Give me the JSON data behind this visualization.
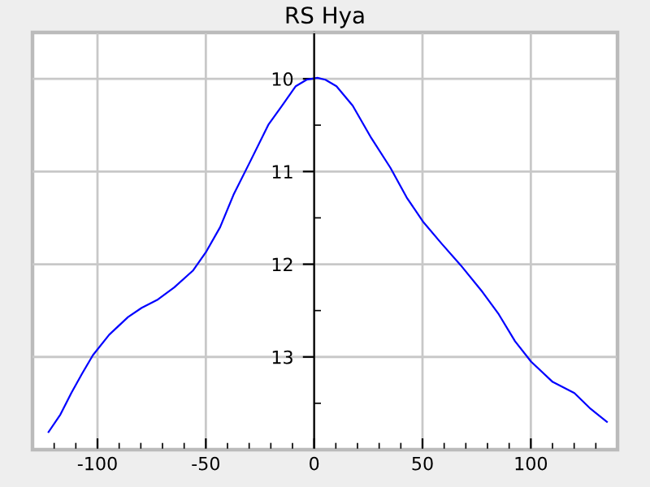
{
  "chart_data": {
    "type": "line",
    "title": "RS Hya",
    "x": [
      -122.6,
      -117.1,
      -112.1,
      -107.1,
      -102.1,
      -94.6,
      -85.9,
      -79.6,
      -72.1,
      -64.6,
      -56.0,
      -49.7,
      -43.4,
      -37.2,
      -29.7,
      -21.0,
      -14.8,
      -8.5,
      -3.5,
      1.5,
      5.2,
      10.3,
      17.8,
      26.4,
      35.2,
      42.7,
      50.2,
      58.9,
      67.6,
      77.7,
      85.2,
      92.7,
      100.1,
      110.1,
      120.1,
      127.6,
      135.1
    ],
    "series": [
      {
        "color": "#0000ff",
        "values": [
          13.81,
          13.62,
          13.39,
          13.18,
          12.98,
          12.76,
          12.57,
          12.47,
          12.38,
          12.25,
          12.07,
          11.86,
          11.6,
          11.25,
          10.9,
          10.49,
          10.29,
          10.08,
          10.01,
          9.99,
          10.01,
          10.08,
          10.29,
          10.64,
          10.96,
          11.28,
          11.54,
          11.78,
          12.01,
          12.3,
          12.54,
          12.83,
          13.05,
          13.27,
          13.39,
          13.56,
          13.7
        ]
      }
    ],
    "xlim": [
      -130,
      140
    ],
    "ylim": [
      14,
      9.5
    ],
    "xticks": [
      {
        "value": -120,
        "label": null
      },
      {
        "value": -110,
        "label": null
      },
      -100,
      {
        "value": -90,
        "label": null
      },
      {
        "value": -80,
        "label": null
      },
      {
        "value": -70,
        "label": null
      },
      {
        "value": -60,
        "label": null
      },
      -50,
      {
        "value": -40,
        "label": null
      },
      {
        "value": -30,
        "label": null
      },
      {
        "value": -20,
        "label": null
      },
      {
        "value": -10,
        "label": null
      },
      0,
      {
        "value": 10,
        "label": null
      },
      {
        "value": 20,
        "label": null
      },
      {
        "value": 30,
        "label": null
      },
      {
        "value": 40,
        "label": null
      },
      50,
      {
        "value": 60,
        "label": null
      },
      {
        "value": 70,
        "label": null
      },
      {
        "value": 80,
        "label": null
      },
      {
        "value": 90,
        "label": null
      },
      100,
      {
        "value": 110,
        "label": null
      },
      {
        "value": 120,
        "label": null
      },
      {
        "value": 130,
        "label": null
      }
    ],
    "yticks": [
      {
        "value": 9.5,
        "label": null
      },
      10,
      {
        "value": 10.5,
        "label": null
      },
      11,
      {
        "value": 11.5,
        "label": null
      },
      12,
      {
        "value": 12.5,
        "label": null
      },
      13,
      {
        "value": 13.5,
        "label": null
      }
    ],
    "grid": true,
    "marker": "none",
    "line_style": "solid"
  }
}
